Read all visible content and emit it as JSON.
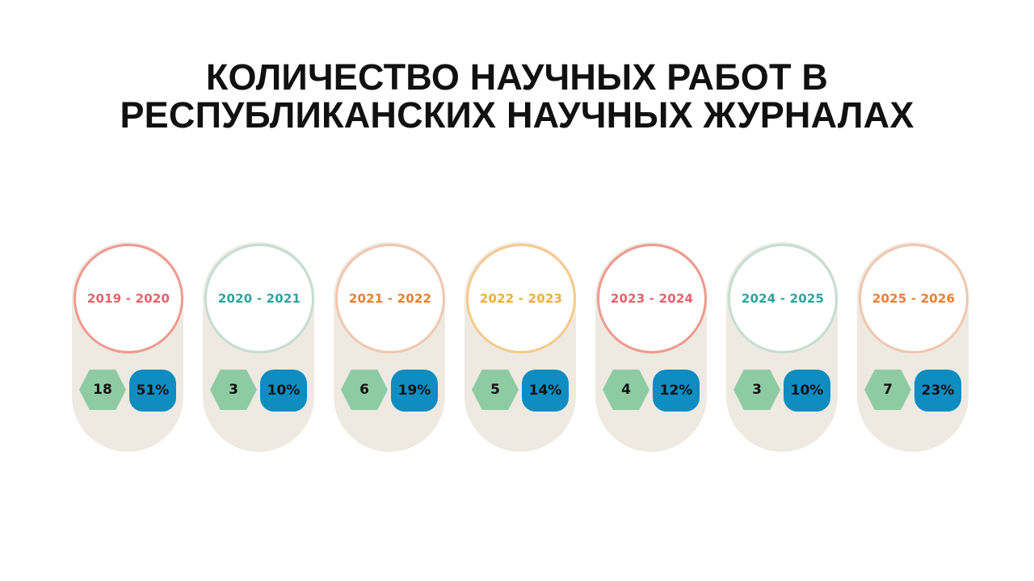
{
  "title": {
    "line1": "КОЛИЧЕСТВО НАУЧНЫХ РАБОТ В",
    "line2": "РЕСПУБЛИКАНСКИХ НАУЧНЫХ ЖУРНАЛАХ"
  },
  "chart_data": {
    "type": "table",
    "title": "КОЛИЧЕСТВО НАУЧНЫХ РАБОТ В РЕСПУБЛИКАНСКИХ НАУЧНЫХ ЖУРНАЛАХ",
    "columns": [
      "period",
      "count",
      "percent"
    ],
    "rows": [
      {
        "period": "2019 - 2020",
        "count": "18",
        "percent": "51%",
        "color": "#e8626a",
        "ring": "#ef9a8e"
      },
      {
        "period": "2020 - 2021",
        "count": "3",
        "percent": "10%",
        "color": "#2ba5a0",
        "ring": "#c5ddd2"
      },
      {
        "period": "2021 - 2022",
        "count": "6",
        "percent": "19%",
        "color": "#ef7e2c",
        "ring": "#f0c7ad"
      },
      {
        "period": "2022 - 2023",
        "count": "5",
        "percent": "14%",
        "color": "#f3b12c",
        "ring": "#f7c98a"
      },
      {
        "period": "2023 - 2024",
        "count": "4",
        "percent": "12%",
        "color": "#e8626a",
        "ring": "#ef9a8e"
      },
      {
        "period": "2024 - 2025",
        "count": "3",
        "percent": "10%",
        "color": "#2ba5a0",
        "ring": "#c5ddd2"
      },
      {
        "period": "2025 - 2026",
        "count": "7",
        "percent": "23%",
        "color": "#ef7e2c",
        "ring": "#f0c7ad"
      }
    ]
  }
}
